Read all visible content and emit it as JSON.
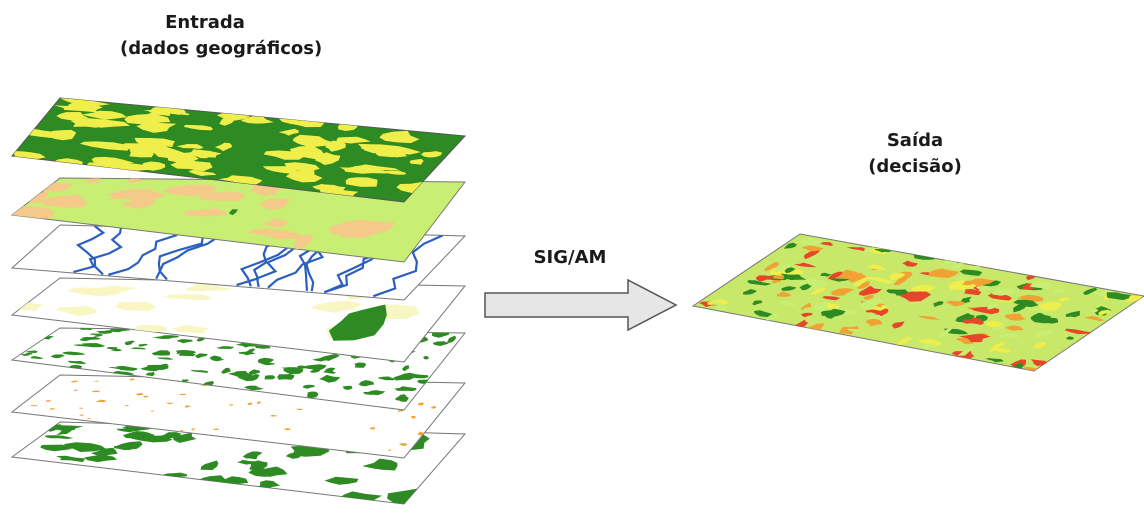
{
  "input": {
    "title": "Entrada",
    "subtitle": "(dados geográficos)"
  },
  "process": {
    "label": "SIG/AM"
  },
  "output": {
    "title": "Saída",
    "subtitle": "(decisão)"
  },
  "colors": {
    "dark_green": "#2e8b23",
    "yellow": "#f0ee4a",
    "light_green": "#c8ee74",
    "tan": "#f4c98a",
    "blue": "#2b5fbf",
    "pale_yellow": "#f8f6c2",
    "orange": "#f0a234",
    "red": "#e8462a",
    "arrow_fill": "#e6e6e6",
    "arrow_stroke": "#555555"
  }
}
